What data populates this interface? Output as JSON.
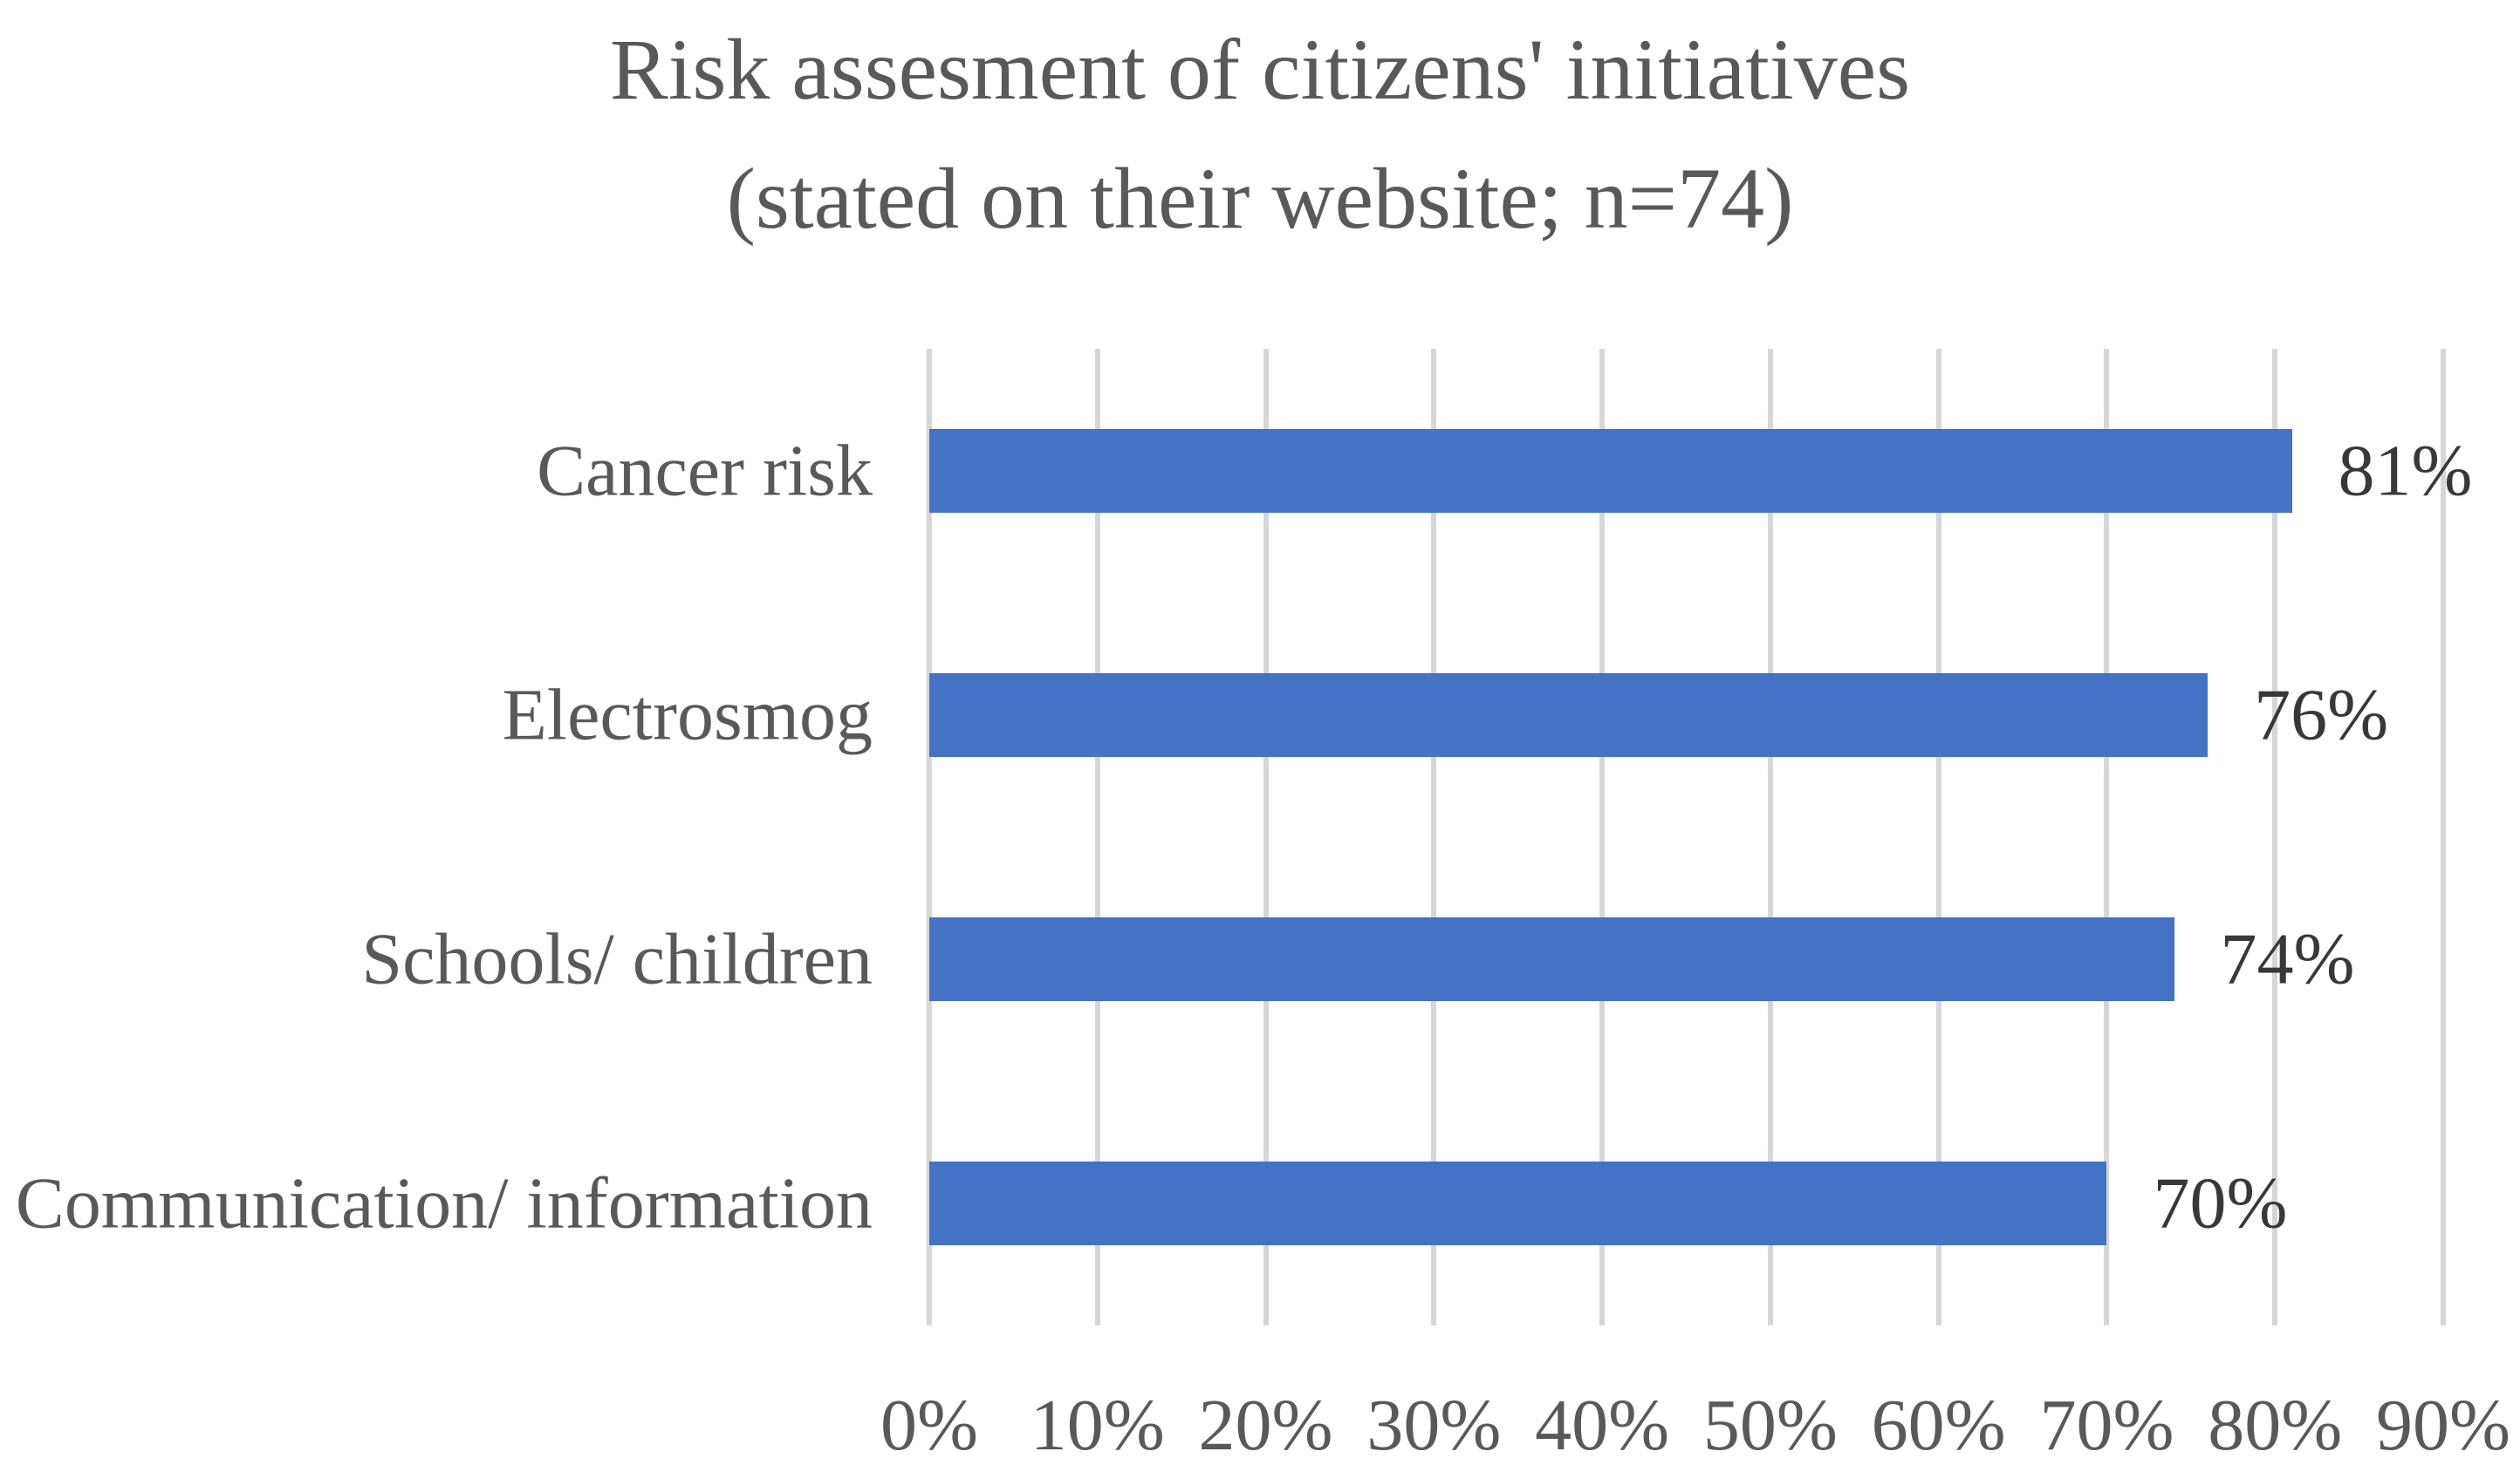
{
  "chart_data": {
    "type": "bar",
    "orientation": "horizontal",
    "title": "Risk assesment of citizens' initiatives (stated on their website; n=74)",
    "title_line1": "Risk assesment of citizens' initiatives",
    "title_line2": "(stated on their website; n=74)",
    "categories": [
      "Cancer risk",
      "Electrosmog",
      "Schools/ children",
      "Communication/ information"
    ],
    "values": [
      81,
      76,
      74,
      70
    ],
    "value_labels": [
      "81%",
      "76%",
      "74%",
      "70%"
    ],
    "x_ticks": [
      "0%",
      "10%",
      "20%",
      "30%",
      "40%",
      "50%",
      "60%",
      "70%",
      "80%",
      "90%"
    ],
    "x_tick_values": [
      0,
      10,
      20,
      30,
      40,
      50,
      60,
      70,
      80,
      90
    ],
    "xlim": [
      0,
      90
    ],
    "xlabel": "",
    "ylabel": "",
    "grid": true,
    "legend": false,
    "data_labels_shown": true,
    "colors": {
      "bar": "#4472C4",
      "gridline": "#D6D6D6",
      "title_text": "#595959",
      "axis_text": "#595959",
      "category_text": "#595959",
      "value_text": "#383838",
      "background": "#FFFFFF"
    }
  }
}
